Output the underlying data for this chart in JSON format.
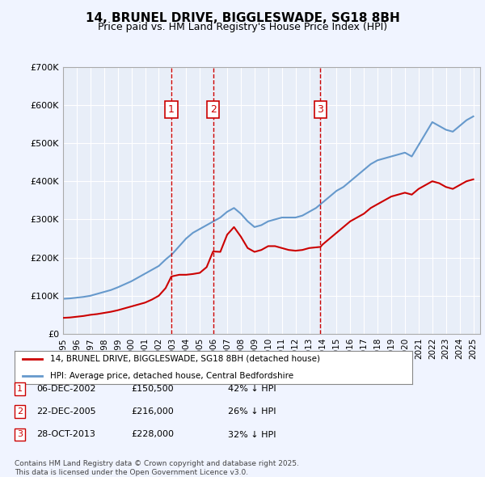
{
  "title": "14, BRUNEL DRIVE, BIGGLESWADE, SG18 8BH",
  "subtitle": "Price paid vs. HM Land Registry's House Price Index (HPI)",
  "legend_line1": "14, BRUNEL DRIVE, BIGGLESWADE, SG18 8BH (detached house)",
  "legend_line2": "HPI: Average price, detached house, Central Bedfordshire",
  "footer_line1": "Contains HM Land Registry data © Crown copyright and database right 2025.",
  "footer_line2": "This data is licensed under the Open Government Licence v3.0.",
  "sales": [
    {
      "num": 1,
      "date": "06-DEC-2002",
      "price": "£150,500",
      "hpi": "42% ↓ HPI",
      "x": 2002.92
    },
    {
      "num": 2,
      "date": "22-DEC-2005",
      "price": "£216,000",
      "hpi": "26% ↓ HPI",
      "x": 2005.97
    },
    {
      "num": 3,
      "date": "28-OCT-2013",
      "price": "£228,000",
      "hpi": "32% ↓ HPI",
      "x": 2013.82
    }
  ],
  "sale_prices": [
    150500,
    216000,
    228000
  ],
  "red_line_x": [
    1995.0,
    1995.5,
    1996.0,
    1996.5,
    1997.0,
    1997.5,
    1998.0,
    1998.5,
    1999.0,
    1999.5,
    2000.0,
    2000.5,
    2001.0,
    2001.5,
    2002.0,
    2002.5,
    2002.92,
    2003.5,
    2004.0,
    2004.5,
    2005.0,
    2005.5,
    2005.97,
    2006.5,
    2007.0,
    2007.5,
    2008.0,
    2008.5,
    2009.0,
    2009.5,
    2010.0,
    2010.5,
    2011.0,
    2011.5,
    2012.0,
    2012.5,
    2013.0,
    2013.82,
    2014.0,
    2014.5,
    2015.0,
    2015.5,
    2016.0,
    2016.5,
    2017.0,
    2017.5,
    2018.0,
    2018.5,
    2019.0,
    2019.5,
    2020.0,
    2020.5,
    2021.0,
    2021.5,
    2022.0,
    2022.5,
    2023.0,
    2023.5,
    2024.0,
    2024.5,
    2025.0
  ],
  "red_line_y": [
    42000,
    43000,
    45000,
    47000,
    50000,
    52000,
    55000,
    58000,
    62000,
    67000,
    72000,
    77000,
    82000,
    90000,
    100000,
    120000,
    150500,
    155000,
    155000,
    157000,
    160000,
    175000,
    216000,
    215000,
    260000,
    280000,
    255000,
    225000,
    215000,
    220000,
    230000,
    230000,
    225000,
    220000,
    218000,
    220000,
    225000,
    228000,
    235000,
    250000,
    265000,
    280000,
    295000,
    305000,
    315000,
    330000,
    340000,
    350000,
    360000,
    365000,
    370000,
    365000,
    380000,
    390000,
    400000,
    395000,
    385000,
    380000,
    390000,
    400000,
    405000
  ],
  "blue_line_x": [
    1995.0,
    1995.5,
    1996.0,
    1996.5,
    1997.0,
    1997.5,
    1998.0,
    1998.5,
    1999.0,
    1999.5,
    2000.0,
    2000.5,
    2001.0,
    2001.5,
    2002.0,
    2002.5,
    2003.0,
    2003.5,
    2004.0,
    2004.5,
    2005.0,
    2005.5,
    2006.0,
    2006.5,
    2007.0,
    2007.5,
    2008.0,
    2008.5,
    2009.0,
    2009.5,
    2010.0,
    2010.5,
    2011.0,
    2011.5,
    2012.0,
    2012.5,
    2013.0,
    2013.5,
    2014.0,
    2014.5,
    2015.0,
    2015.5,
    2016.0,
    2016.5,
    2017.0,
    2017.5,
    2018.0,
    2018.5,
    2019.0,
    2019.5,
    2020.0,
    2020.5,
    2021.0,
    2021.5,
    2022.0,
    2022.5,
    2023.0,
    2023.5,
    2024.0,
    2024.5,
    2025.0
  ],
  "blue_line_y": [
    92000,
    93000,
    95000,
    97000,
    100000,
    105000,
    110000,
    115000,
    122000,
    130000,
    138000,
    148000,
    158000,
    168000,
    178000,
    195000,
    210000,
    230000,
    250000,
    265000,
    275000,
    285000,
    295000,
    305000,
    320000,
    330000,
    315000,
    295000,
    280000,
    285000,
    295000,
    300000,
    305000,
    305000,
    305000,
    310000,
    320000,
    330000,
    345000,
    360000,
    375000,
    385000,
    400000,
    415000,
    430000,
    445000,
    455000,
    460000,
    465000,
    470000,
    475000,
    465000,
    495000,
    525000,
    555000,
    545000,
    535000,
    530000,
    545000,
    560000,
    570000
  ],
  "xlim": [
    1995.0,
    2025.5
  ],
  "ylim": [
    0,
    700000
  ],
  "yticks": [
    0,
    100000,
    200000,
    300000,
    400000,
    500000,
    600000,
    700000
  ],
  "ytick_labels": [
    "£0",
    "£100K",
    "£200K",
    "£300K",
    "£400K",
    "£500K",
    "£600K",
    "£700K"
  ],
  "xticks": [
    1995,
    1996,
    1997,
    1998,
    1999,
    2000,
    2001,
    2002,
    2003,
    2004,
    2005,
    2006,
    2007,
    2008,
    2009,
    2010,
    2011,
    2012,
    2013,
    2014,
    2015,
    2016,
    2017,
    2018,
    2019,
    2020,
    2021,
    2022,
    2023,
    2024,
    2025
  ],
  "bg_color": "#f0f4ff",
  "plot_bg_color": "#e8eef8",
  "red_color": "#cc0000",
  "blue_color": "#6699cc",
  "grid_color": "#ffffff",
  "vline_color": "#cc0000",
  "box_color": "#cc0000"
}
